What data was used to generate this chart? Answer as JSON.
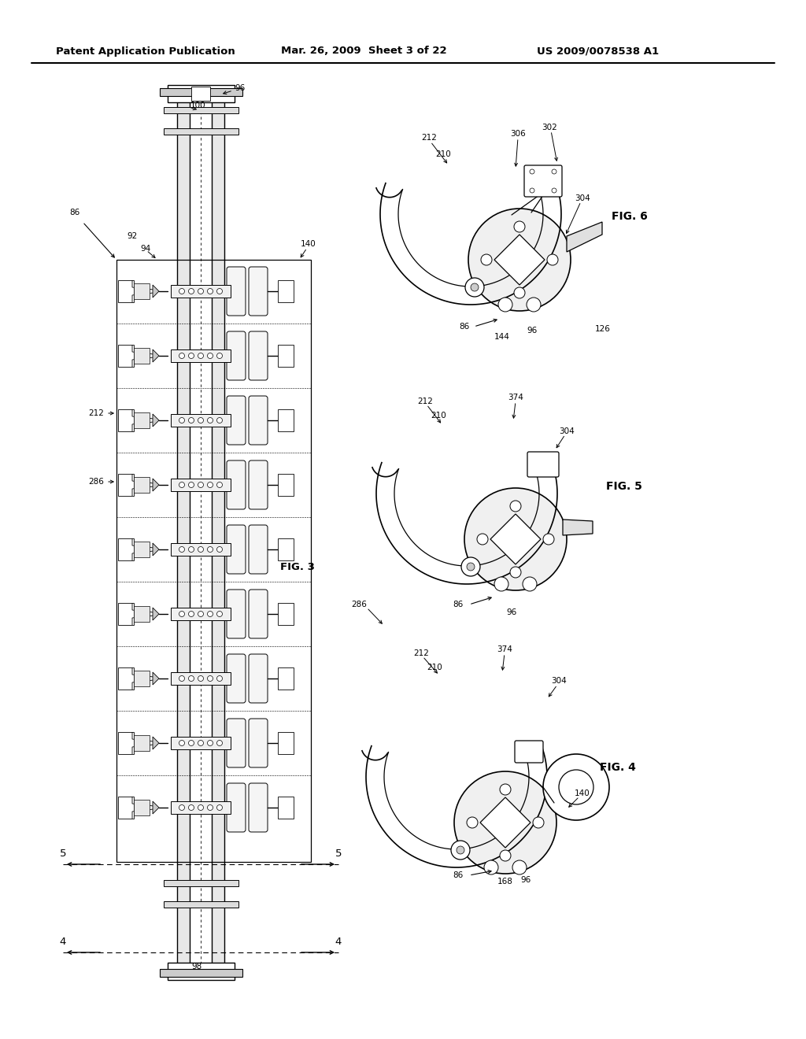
{
  "title_left": "Patent Application Publication",
  "title_mid": "Mar. 26, 2009  Sheet 3 of 22",
  "title_right": "US 2009/0078538 A1",
  "bg_color": "#ffffff",
  "lc": "#000000",
  "fig3_label": "FIG. 3",
  "fig4_label": "FIG. 4",
  "fig5_label": "FIG. 5",
  "fig6_label": "FIG. 6",
  "refs": {
    "86": "86",
    "92": "92",
    "94": "94",
    "96": "96",
    "98": "98",
    "100": "100",
    "126": "126",
    "140": "140",
    "144": "144",
    "168": "168",
    "210": "210",
    "212": "212",
    "286": "286",
    "302": "302",
    "304": "304",
    "306": "306",
    "374": "374"
  }
}
